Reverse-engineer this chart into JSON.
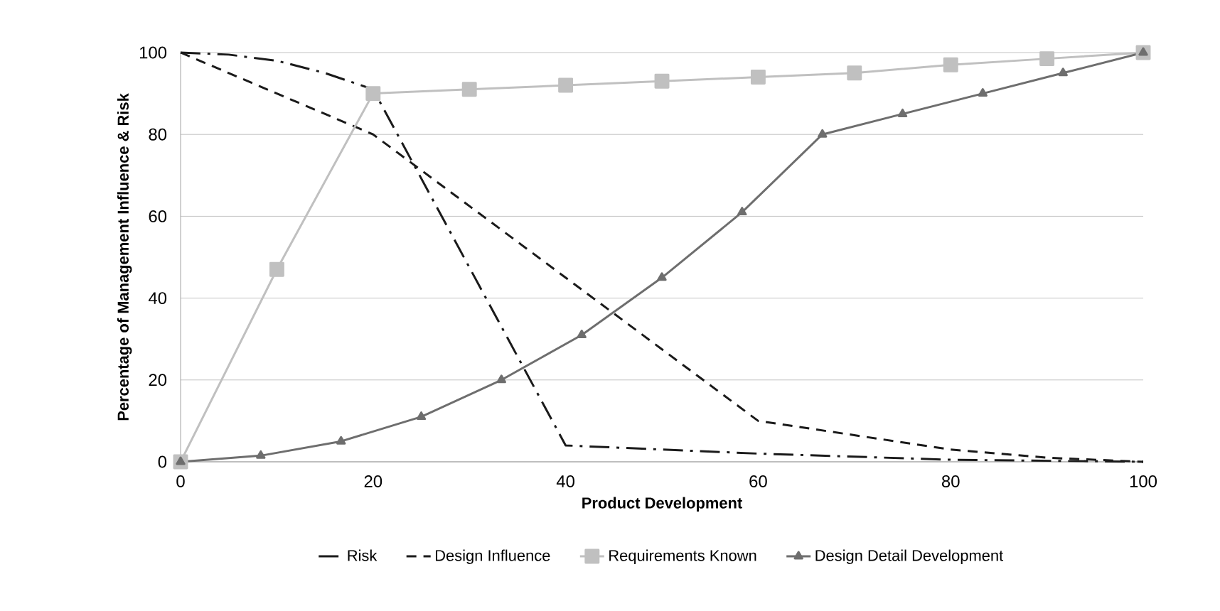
{
  "chart_data": {
    "type": "line",
    "xlabel": "Product Development",
    "ylabel": "Percentage of Management Influence & Risk",
    "xlim": [
      0,
      100
    ],
    "ylim": [
      0,
      100
    ],
    "xticks": [
      0,
      20,
      40,
      60,
      80,
      100
    ],
    "yticks": [
      0,
      20,
      40,
      60,
      80,
      100
    ],
    "grid": "y",
    "legend": "bottom",
    "series": [
      {
        "name": "Risk",
        "color": "#1a1a1a",
        "line_style": "dashdot",
        "marker": "none",
        "x": [
          0,
          5,
          10,
          15,
          20,
          40,
          60,
          80,
          100
        ],
        "values": [
          100,
          99.5,
          98,
          95,
          91,
          4,
          2,
          0.5,
          0
        ]
      },
      {
        "name": "Design Influence",
        "color": "#1a1a1a",
        "line_style": "dashed",
        "marker": "none",
        "x": [
          0,
          20,
          60,
          80,
          90,
          100
        ],
        "values": [
          100,
          80,
          10,
          3,
          1,
          0
        ]
      },
      {
        "name": "Requirements Known",
        "color": "#c0c0c0",
        "line_style": "solid",
        "marker": "square",
        "x": [
          0,
          10,
          20,
          30,
          40,
          50,
          60,
          70,
          80,
          90,
          100
        ],
        "values": [
          0,
          47,
          90,
          91,
          92,
          93,
          94,
          95,
          97,
          98.5,
          100
        ]
      },
      {
        "name": "Design Detail Development",
        "color": "#6e6e6e",
        "line_style": "solid",
        "marker": "triangle",
        "x": [
          0,
          8.33,
          16.67,
          25,
          33.33,
          41.67,
          50,
          58.33,
          66.67,
          75,
          83.33,
          91.67,
          100
        ],
        "values": [
          0,
          1.5,
          5,
          11,
          20,
          31,
          45,
          61,
          80,
          85,
          90,
          95,
          100
        ]
      }
    ]
  }
}
